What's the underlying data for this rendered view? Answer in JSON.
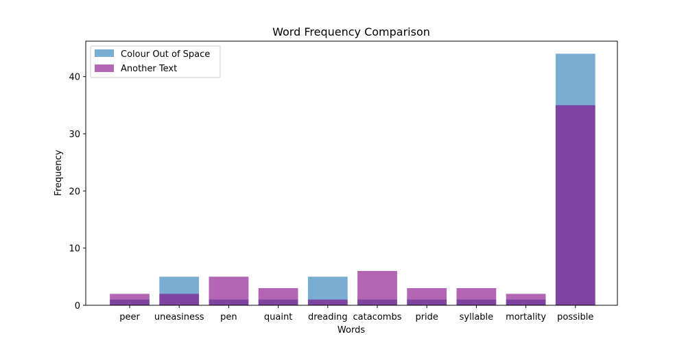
{
  "chart_data": {
    "type": "bar",
    "title": "Word Frequency Comparison",
    "xlabel": "Words",
    "ylabel": "Frequency",
    "ylim": [
      0,
      46.2
    ],
    "yticks": [
      0,
      10,
      20,
      30,
      40
    ],
    "categories": [
      "peer",
      "uneasiness",
      "pen",
      "quaint",
      "dreading",
      "catacombs",
      "pride",
      "syllable",
      "mortality",
      "possible"
    ],
    "series": [
      {
        "name": "Colour Out of Space",
        "color": "#1f77b4",
        "opacity": 0.6,
        "values": [
          1,
          5,
          1,
          1,
          5,
          1,
          1,
          1,
          1,
          44
        ]
      },
      {
        "name": "Another Text",
        "color": "#800080",
        "opacity": 0.6,
        "values": [
          2,
          2,
          5,
          3,
          1,
          6,
          3,
          3,
          2,
          35
        ]
      }
    ],
    "legend_position": "top-left",
    "grid": false
  }
}
